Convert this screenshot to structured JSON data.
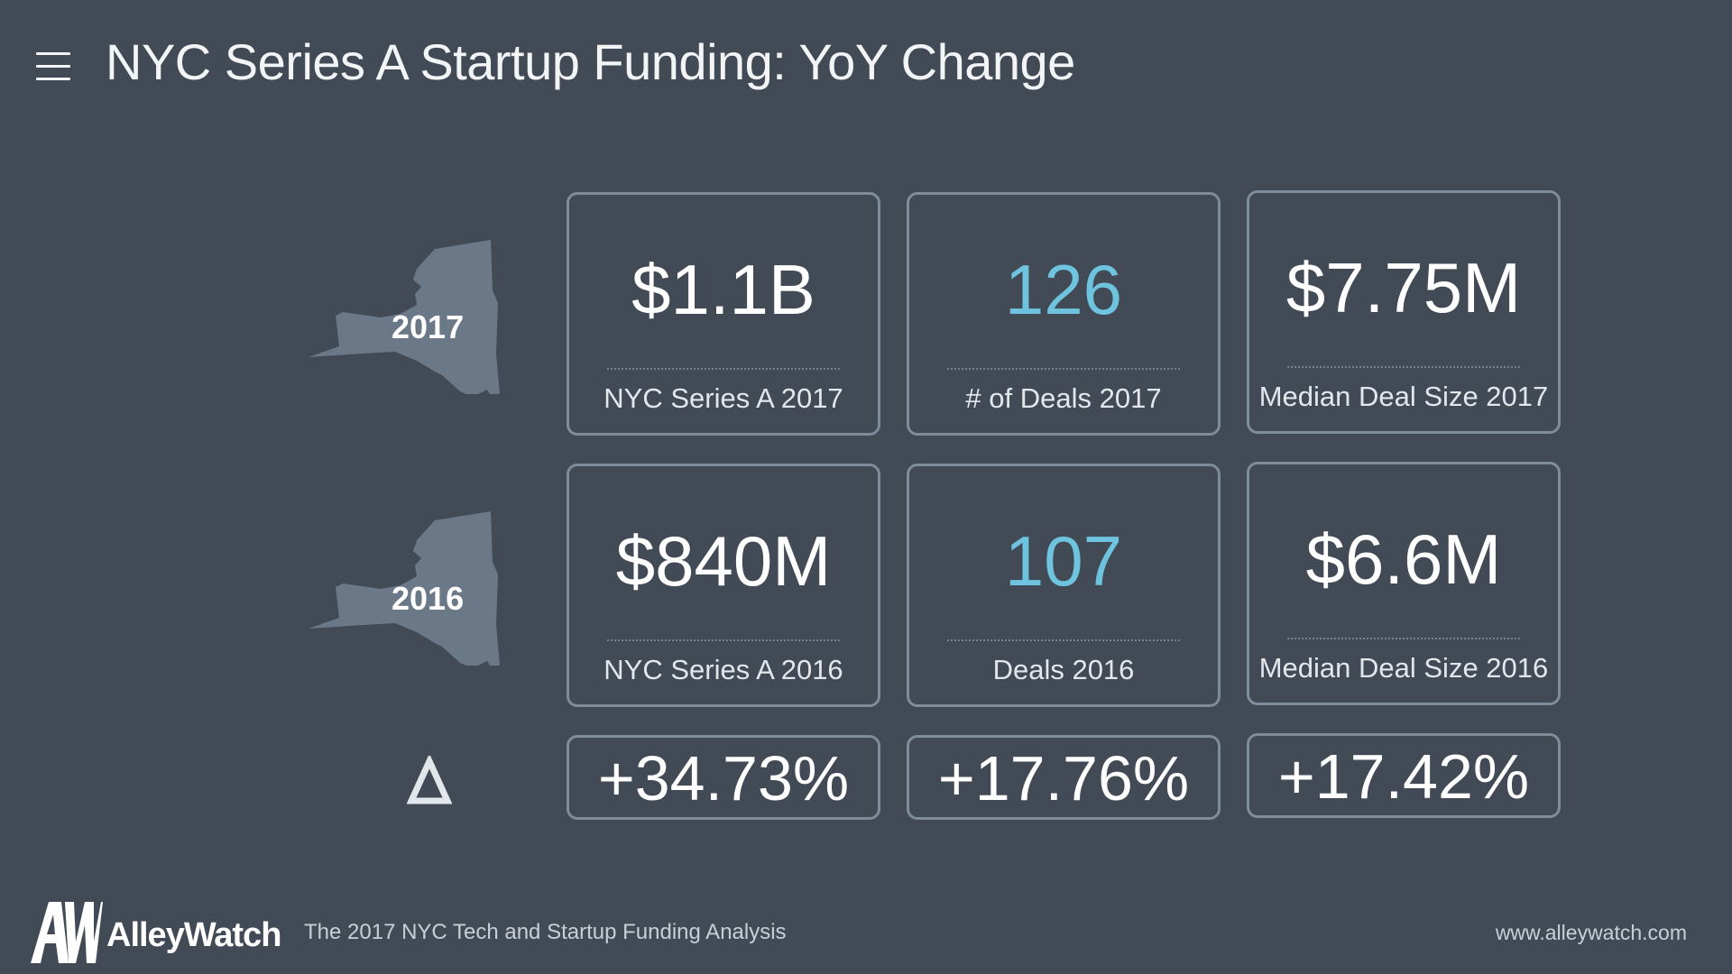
{
  "header": {
    "title": "NYC Series A Startup Funding: YoY Change",
    "menu_icon": "hamburger-menu-icon"
  },
  "rows": {
    "year_2017": "2017",
    "year_2016": "2016",
    "delta_label": "Δ",
    "state_icon": "new-york-state-silhouette"
  },
  "stats_2017": {
    "total": {
      "value": "$1.1B",
      "label": "NYC Series A 2017"
    },
    "deals": {
      "value": "126",
      "label": "# of Deals 2017"
    },
    "median": {
      "value": "$7.75M",
      "label": "Median Deal Size 2017"
    }
  },
  "stats_2016": {
    "total": {
      "value": "$840M",
      "label": "NYC Series A 2016"
    },
    "deals": {
      "value": "107",
      "label": "Deals 2016"
    },
    "median": {
      "value": "$6.6M",
      "label": "Median Deal Size 2016"
    }
  },
  "change": {
    "total": "+34.73%",
    "deals": "+17.76%",
    "median": "+17.42%"
  },
  "footer": {
    "brand": "AlleyWatch",
    "logo_icon": "alleywatch-aw-logo",
    "caption": "The 2017 NYC Tech and Startup Funding Analysis",
    "url": "www.alleywatch.com"
  },
  "colors": {
    "background": "#414a55",
    "card_border": "#7f8c9a",
    "accent": "#6ec4de",
    "state_fill": "#6a7888"
  }
}
